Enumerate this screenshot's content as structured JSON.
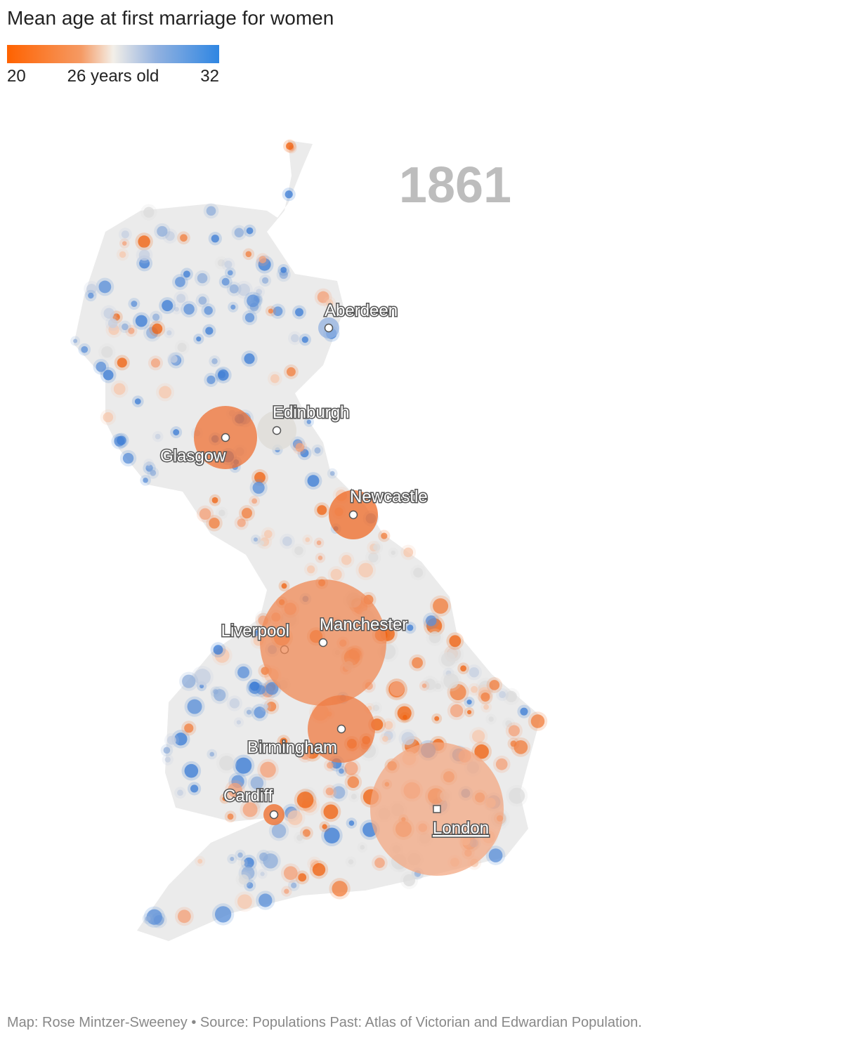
{
  "title": "Mean age at first marriage for women",
  "legend": {
    "min": 20,
    "mid": "26 years old",
    "max": 32
  },
  "year": 1861,
  "cities": [
    "Aberdeen",
    "Edinburgh",
    "Glasgow",
    "Newcastle",
    "Liverpool",
    "Manchester",
    "Birmingham",
    "Cardiff",
    "London"
  ],
  "footer": "Map: Rose Mintzer-Sweeney • Source: Populations Past: Atlas of Victorian and Edwardian Population."
}
